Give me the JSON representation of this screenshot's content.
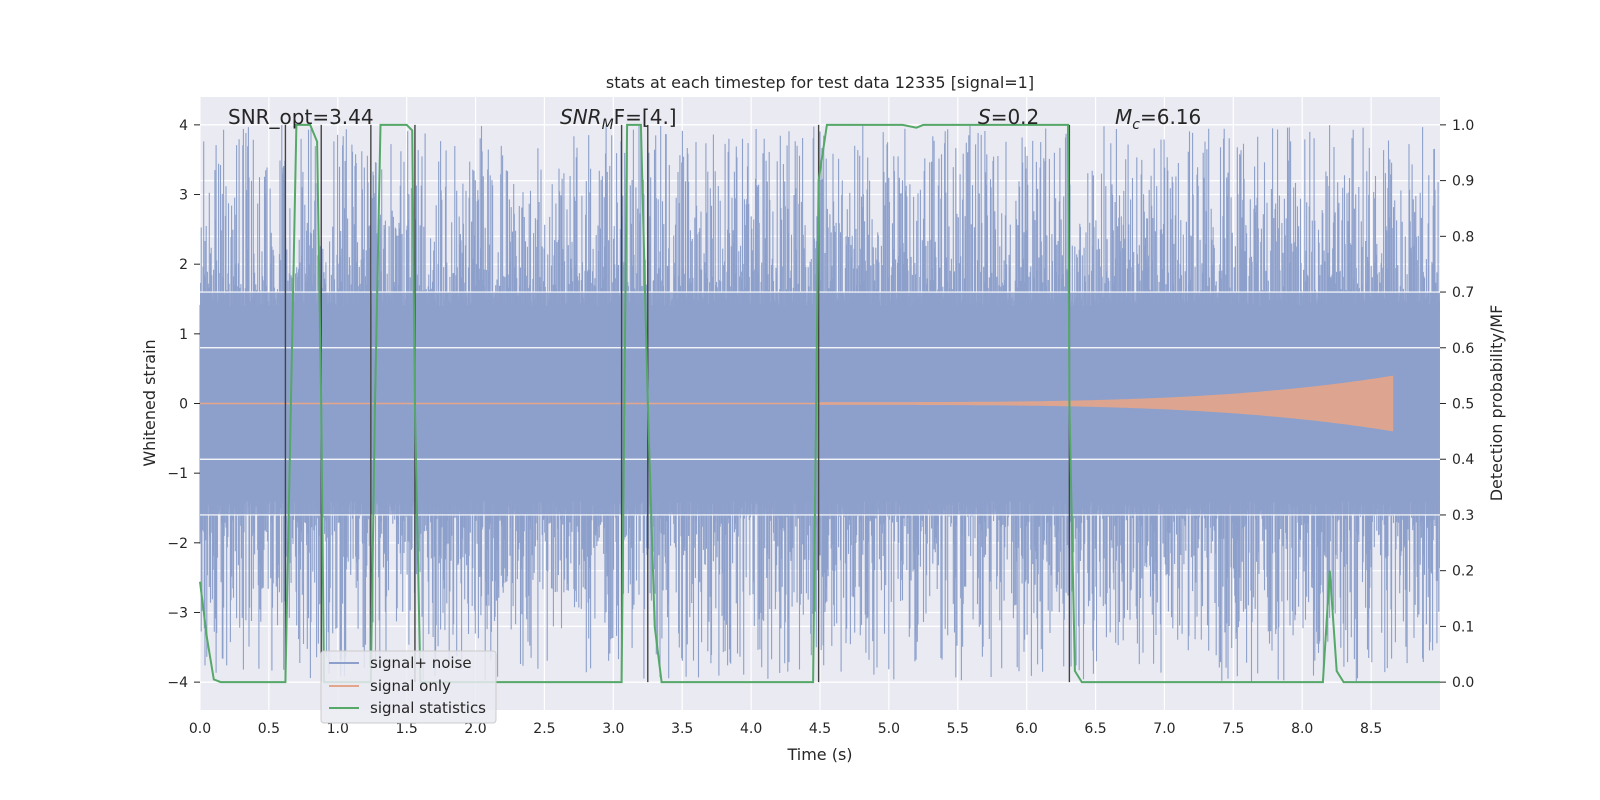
{
  "chart_data": {
    "type": "line",
    "title": "stats at each timestep for test data 12335 [signal=1]",
    "xlabel": "Time (s)",
    "ylabel_left": "Whitened strain",
    "ylabel_right": "Detection probability/MF",
    "xlim": [
      0.0,
      9.0
    ],
    "ylim_left": [
      -4.4,
      4.4
    ],
    "ylim_right": [
      -0.05,
      1.05
    ],
    "xticks": [
      "0.0",
      "0.5",
      "1.0",
      "1.5",
      "2.0",
      "2.5",
      "3.0",
      "3.5",
      "4.0",
      "4.5",
      "5.0",
      "5.5",
      "6.0",
      "6.5",
      "7.0",
      "7.5",
      "8.0",
      "8.5"
    ],
    "yticks_left": [
      "−4",
      "−3",
      "−2",
      "−1",
      "0",
      "1",
      "2",
      "3",
      "4"
    ],
    "yticks_right": [
      "0.0",
      "0.1",
      "0.2",
      "0.3",
      "0.4",
      "0.5",
      "0.6",
      "0.7",
      "0.8",
      "0.9",
      "1.0"
    ],
    "grid": true,
    "legend_placement": "lower-left",
    "annotations": {
      "snr_opt": "SNR_opt=3.44",
      "snr_mf_base": "SNR",
      "snr_mf_sub": "M",
      "snr_mf_rest": "F=[4.]",
      "s_base": "S",
      "s_rest": "=0.2",
      "mc_base": "M",
      "mc_sub": "c",
      "mc_rest": "=6.16"
    },
    "noise_band": {
      "dense_abs": 1.6,
      "spike_max_abs": 4.0,
      "sample_step": 0.0045
    },
    "signal_only": {
      "t_start": 4.5,
      "t_end": 8.66,
      "amp_start": 0.02,
      "amp_end": 0.4
    },
    "vertical_lines": [
      0.62,
      0.88,
      1.24,
      1.56,
      3.06,
      3.25,
      4.49,
      6.31
    ],
    "series": [
      {
        "name": "signal+ noise",
        "color": "#8da0cb",
        "axis": "left"
      },
      {
        "name": "signal only",
        "color": "#e5a58a",
        "axis": "left"
      },
      {
        "name": "signal statistics",
        "color": "#55a868",
        "axis": "right",
        "x": [
          0.0,
          0.05,
          0.1,
          0.15,
          0.2,
          0.3,
          0.4,
          0.5,
          0.6,
          0.62,
          0.66,
          0.7,
          0.75,
          0.8,
          0.85,
          0.88,
          0.9,
          0.95,
          1.0,
          1.05,
          1.1,
          1.15,
          1.2,
          1.24,
          1.27,
          1.31,
          1.35,
          1.4,
          1.45,
          1.5,
          1.54,
          1.56,
          1.6,
          1.65,
          1.7,
          1.8,
          2.0,
          2.5,
          3.0,
          3.05,
          3.06,
          3.1,
          3.15,
          3.2,
          3.25,
          3.3,
          3.35,
          3.4,
          3.5,
          4.0,
          4.4,
          4.45,
          4.49,
          4.55,
          4.6,
          5.0,
          5.1,
          5.2,
          5.25,
          5.5,
          6.0,
          6.3,
          6.31,
          6.35,
          6.4,
          6.5,
          7.0,
          7.5,
          8.0,
          8.15,
          8.2,
          8.25,
          8.3,
          8.5,
          9.0
        ],
        "values": [
          0.18,
          0.08,
          0.005,
          0.0,
          0.0,
          0.0,
          0.0,
          0.0,
          0.0,
          0.0,
          0.5,
          1.0,
          1.0,
          1.0,
          0.97,
          0.5,
          0.0,
          0.0,
          0.0,
          0.0,
          0.0,
          0.0,
          0.0,
          0.0,
          0.5,
          1.0,
          1.0,
          1.0,
          1.0,
          1.0,
          0.99,
          0.5,
          0.0,
          0.0,
          0.0,
          0.0,
          0.0,
          0.0,
          0.0,
          0.0,
          0.0,
          1.0,
          1.0,
          1.0,
          0.5,
          0.1,
          0.0,
          0.0,
          0.0,
          0.0,
          0.0,
          0.0,
          0.9,
          1.0,
          1.0,
          1.0,
          1.0,
          0.995,
          1.0,
          1.0,
          1.0,
          1.0,
          0.5,
          0.02,
          0.0,
          0.0,
          0.0,
          0.0,
          0.0,
          0.0,
          0.2,
          0.02,
          0.0,
          0.0,
          0.0
        ]
      }
    ]
  }
}
